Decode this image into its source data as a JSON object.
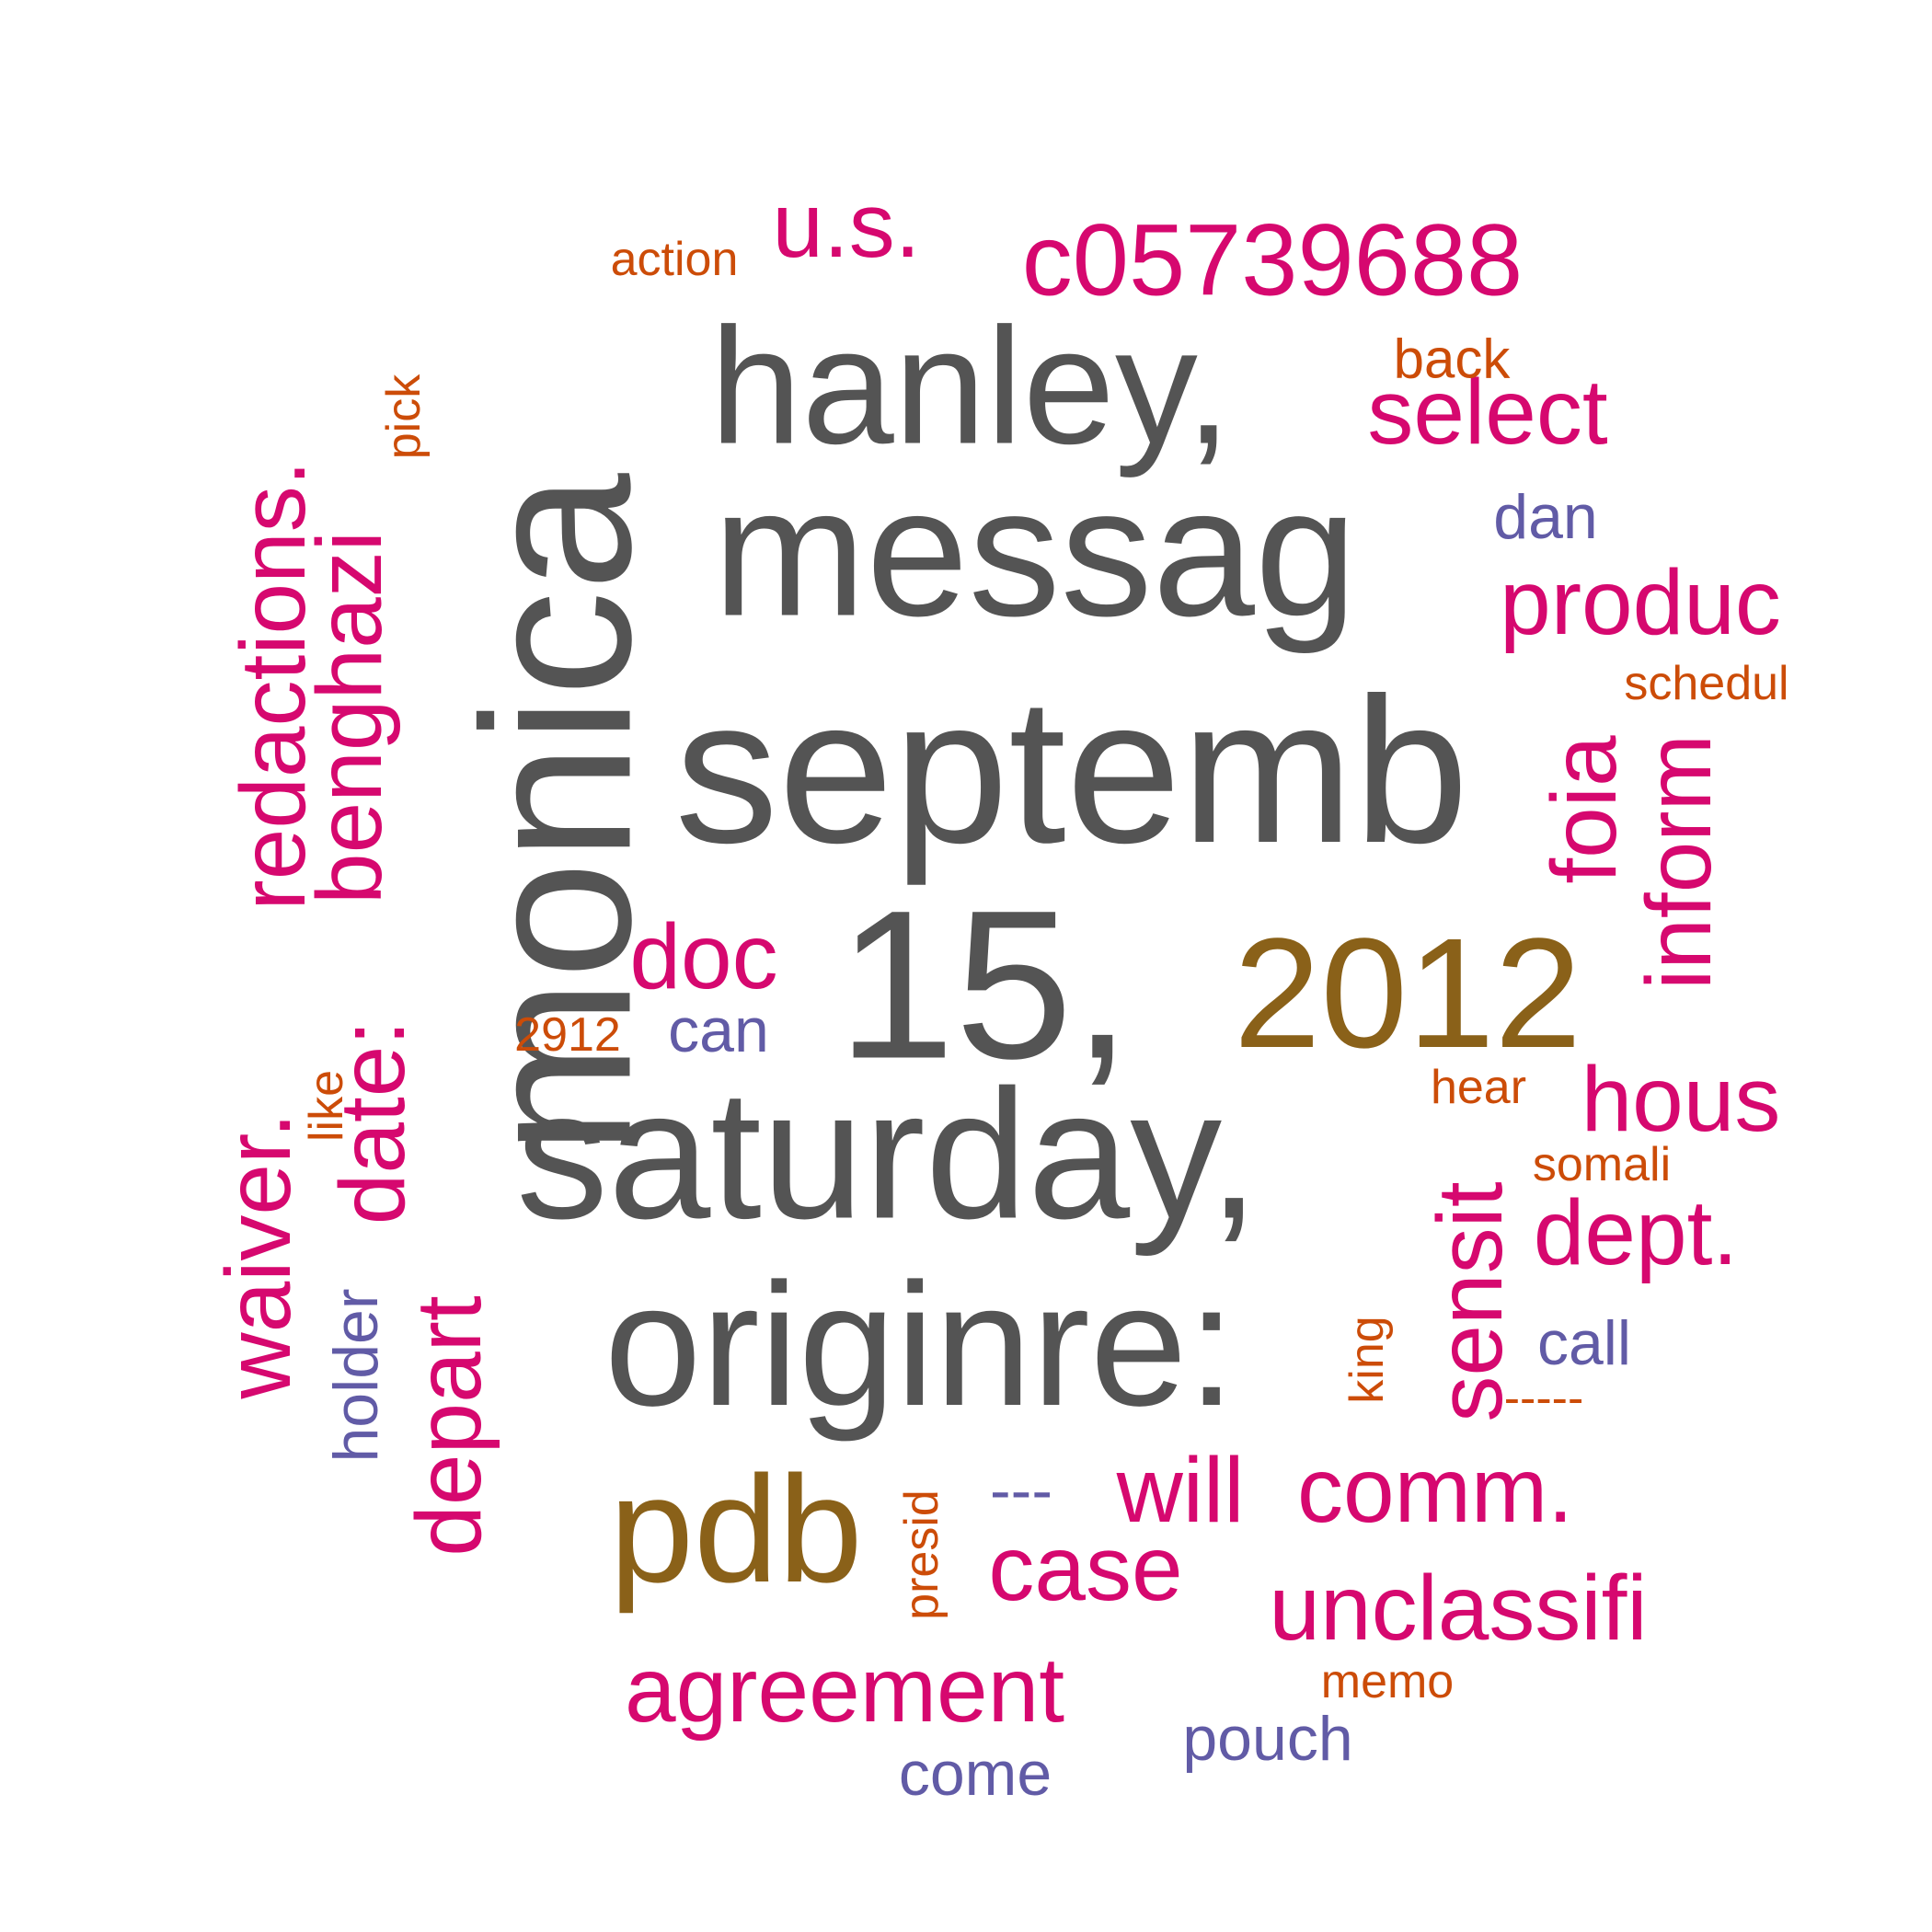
{
  "palette": {
    "gray": "#545454",
    "olive": "#8a6119",
    "magenta": "#d6086f",
    "orange": "#cc4c08",
    "purple": "#615ba6"
  },
  "words": [
    {
      "text": "saturday,",
      "color": "gray",
      "rotate": 0
    },
    {
      "text": "septemb",
      "color": "gray",
      "rotate": 0
    },
    {
      "text": "messag",
      "color": "gray",
      "rotate": 0
    },
    {
      "text": "monica",
      "color": "gray",
      "rotate": -90
    },
    {
      "text": "15,",
      "color": "gray",
      "rotate": 0
    },
    {
      "text": "originre:",
      "color": "gray",
      "rotate": 0
    },
    {
      "text": "hanley,",
      "color": "gray",
      "rotate": 0
    },
    {
      "text": "2012",
      "color": "olive",
      "rotate": 0
    },
    {
      "text": "pdb",
      "color": "olive",
      "rotate": 0
    },
    {
      "text": "c05739688",
      "color": "magenta",
      "rotate": 0
    },
    {
      "text": "u.s.",
      "color": "magenta",
      "rotate": 0
    },
    {
      "text": "select",
      "color": "magenta",
      "rotate": 0
    },
    {
      "text": "produc",
      "color": "magenta",
      "rotate": 0
    },
    {
      "text": "redactions.",
      "color": "magenta",
      "rotate": -90
    },
    {
      "text": "benghazi",
      "color": "magenta",
      "rotate": -90
    },
    {
      "text": "date:",
      "color": "magenta",
      "rotate": -90
    },
    {
      "text": "waiver.",
      "color": "magenta",
      "rotate": -90
    },
    {
      "text": "depart",
      "color": "magenta",
      "rotate": -90
    },
    {
      "text": "doc",
      "color": "magenta",
      "rotate": 0
    },
    {
      "text": "foia",
      "color": "magenta",
      "rotate": -90
    },
    {
      "text": "inform",
      "color": "magenta",
      "rotate": -90
    },
    {
      "text": "hous",
      "color": "magenta",
      "rotate": 0
    },
    {
      "text": "sensit",
      "color": "magenta",
      "rotate": -90
    },
    {
      "text": "dept.",
      "color": "magenta",
      "rotate": 0
    },
    {
      "text": "will",
      "color": "magenta",
      "rotate": 0
    },
    {
      "text": "comm.",
      "color": "magenta",
      "rotate": 0
    },
    {
      "text": "case",
      "color": "magenta",
      "rotate": 0
    },
    {
      "text": "unclassifi",
      "color": "magenta",
      "rotate": 0
    },
    {
      "text": "agreement",
      "color": "magenta",
      "rotate": 0
    },
    {
      "text": "action",
      "color": "orange",
      "rotate": 0
    },
    {
      "text": "back",
      "color": "orange",
      "rotate": 0
    },
    {
      "text": "pick",
      "color": "orange",
      "rotate": -90
    },
    {
      "text": "schedul",
      "color": "orange",
      "rotate": 0
    },
    {
      "text": "2912",
      "color": "orange",
      "rotate": 0
    },
    {
      "text": "like",
      "color": "orange",
      "rotate": -90
    },
    {
      "text": "hear",
      "color": "orange",
      "rotate": 0
    },
    {
      "text": "somali",
      "color": "orange",
      "rotate": 0
    },
    {
      "text": "king",
      "color": "orange",
      "rotate": -90
    },
    {
      "text": "-----",
      "color": "orange",
      "rotate": 0
    },
    {
      "text": "presid",
      "color": "orange",
      "rotate": -90
    },
    {
      "text": "memo",
      "color": "orange",
      "rotate": 0
    },
    {
      "text": "dan",
      "color": "purple",
      "rotate": 0
    },
    {
      "text": "can",
      "color": "purple",
      "rotate": 0
    },
    {
      "text": "call",
      "color": "purple",
      "rotate": 0
    },
    {
      "text": "holder",
      "color": "purple",
      "rotate": -90
    },
    {
      "text": "---",
      "color": "purple",
      "rotate": 0
    },
    {
      "text": "pouch",
      "color": "purple",
      "rotate": 0
    },
    {
      "text": "come",
      "color": "purple",
      "rotate": 0
    }
  ]
}
